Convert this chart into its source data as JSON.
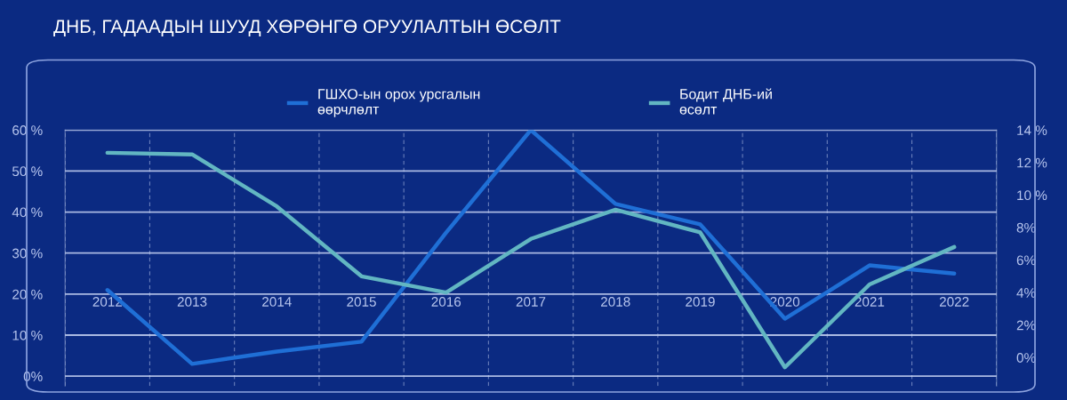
{
  "chart_data": {
    "type": "line",
    "title": "ДНБ, ГАДААДЫН ШУУД ХӨРӨНГӨ ОРУУЛАЛТЫН ӨСӨЛТ",
    "categories": [
      "2012",
      "2013",
      "2014",
      "2015",
      "2016",
      "2017",
      "2018",
      "2019",
      "2020",
      "2021",
      "2022"
    ],
    "series": [
      {
        "name": "ГШХО-ын орох урсгалын\nөөрчлөлт",
        "color": "#1f6fd6",
        "values": [
          21,
          3,
          6,
          8.4,
          35,
          60,
          42,
          37,
          14,
          27,
          25
        ]
      },
      {
        "name": "Бодит ДНБ-ий\nөсөлт",
        "color": "#62b6c2",
        "axis": "y2",
        "values": [
          12.6,
          12.5,
          9.3,
          5.0,
          4.0,
          7.3,
          9.1,
          7.7,
          -0.6,
          4.5,
          6.8
        ]
      }
    ],
    "ylim": [
      -2.4,
      60
    ],
    "yticks": [
      {
        "value": 0,
        "label": "0%"
      },
      {
        "value": 10,
        "label": "10 %"
      },
      {
        "value": 20,
        "label": "20 %"
      },
      {
        "value": 30,
        "label": "30 %"
      },
      {
        "value": 40,
        "label": "40 %"
      },
      {
        "value": 50,
        "label": "50 %"
      },
      {
        "value": 60,
        "label": "60 %"
      }
    ],
    "y2lim": [
      -1.75,
      14
    ],
    "y2ticks": [
      {
        "value": 0,
        "label": "0%"
      },
      {
        "value": 2,
        "label": "2%"
      },
      {
        "value": 4,
        "label": "4%"
      },
      {
        "value": 6,
        "label": "6%"
      },
      {
        "value": 8,
        "label": "8%"
      },
      {
        "value": 10,
        "label": "10 %"
      },
      {
        "value": 12,
        "label": "12 %"
      },
      {
        "value": 14,
        "label": "14 %"
      }
    ],
    "grid": true,
    "legend": "top",
    "marker": "none",
    "line_style": "solid"
  }
}
